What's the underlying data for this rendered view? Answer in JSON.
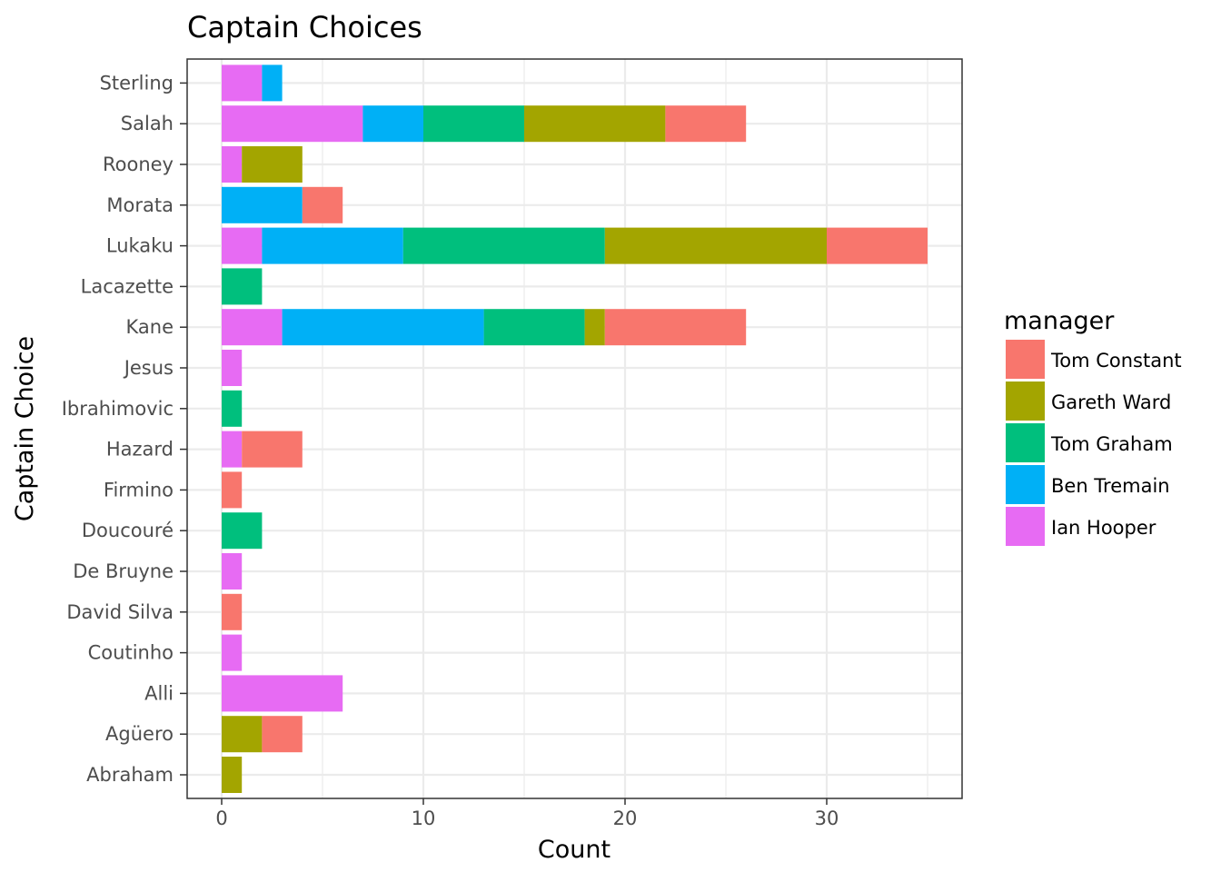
{
  "chart_data": {
    "type": "bar",
    "orientation": "horizontal",
    "stacked": true,
    "title": "Captain Choices",
    "xlabel": "Count",
    "ylabel": "Captain Choice",
    "xlim": [
      0,
      36
    ],
    "xticks": [
      0,
      10,
      20,
      30
    ],
    "grid": true,
    "legend_position": "right",
    "legend_title": "manager",
    "categories": [
      "Sterling",
      "Salah",
      "Rooney",
      "Morata",
      "Lukaku",
      "Lacazette",
      "Kane",
      "Jesus",
      "Ibrahimovic",
      "Hazard",
      "Firmino",
      "Doucouré",
      "De Bruyne",
      "David Silva",
      "Coutinho",
      "Alli",
      "Agüero",
      "Abraham"
    ],
    "series": [
      {
        "name": "Tom Constant",
        "color": "#F8766D",
        "values": [
          0,
          4,
          0,
          2,
          5,
          0,
          7,
          0,
          0,
          3,
          1,
          0,
          0,
          1,
          0,
          0,
          2,
          0
        ]
      },
      {
        "name": "Gareth Ward",
        "color": "#A3A500",
        "values": [
          0,
          7,
          3,
          0,
          11,
          0,
          1,
          0,
          0,
          0,
          0,
          0,
          0,
          0,
          0,
          0,
          2,
          1
        ]
      },
      {
        "name": "Tom Graham",
        "color": "#00BF7D",
        "values": [
          0,
          5,
          0,
          0,
          10,
          2,
          5,
          0,
          1,
          0,
          0,
          2,
          0,
          0,
          0,
          0,
          0,
          0
        ]
      },
      {
        "name": "Ben Tremain",
        "color": "#00B0F6",
        "values": [
          1,
          3,
          0,
          4,
          7,
          0,
          10,
          0,
          0,
          0,
          0,
          0,
          0,
          0,
          0,
          0,
          0,
          0
        ]
      },
      {
        "name": "Ian Hooper",
        "color": "#E76BF3",
        "values": [
          2,
          7,
          1,
          0,
          2,
          0,
          3,
          1,
          0,
          1,
          0,
          0,
          1,
          0,
          1,
          6,
          0,
          0
        ]
      }
    ]
  }
}
